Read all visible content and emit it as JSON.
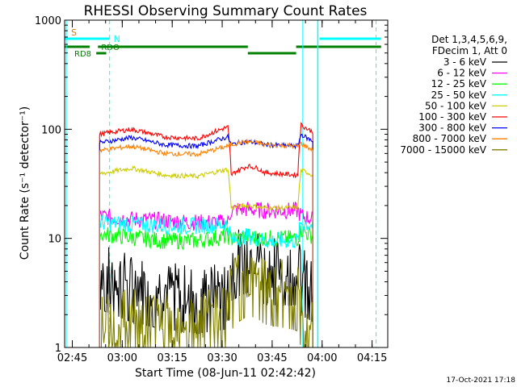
{
  "chart_data": {
    "type": "line",
    "title": "RHESSI Observing Summary Count Rates",
    "xlabel": "Start Time (08-Jun-11 02:42:42)",
    "ylabel": "Count Rate (s⁻¹ detector⁻¹)",
    "yscale": "log",
    "ylim": [
      1,
      1000
    ],
    "xlim_minutes": [
      0,
      97
    ],
    "x_tick_labels": [
      "02:45",
      "03:00",
      "03:15",
      "03:30",
      "03:45",
      "04:00",
      "04:15"
    ],
    "x_ticks_minutes": [
      2.3,
      17.3,
      32.3,
      47.3,
      62.3,
      77.3,
      92.3
    ],
    "y_tick_labels": [
      "1",
      "10",
      "100",
      "1000"
    ],
    "y_ticks": [
      1,
      10,
      100,
      1000
    ],
    "grid": false,
    "legend_header": [
      "Det 1,3,4,5,6,9,",
      "FDecim 1, Att 0"
    ],
    "legend_placement": "right",
    "timestamp": "17-Oct-2021 17:18",
    "flags": {
      "saa_label": "S",
      "night_label": "N",
      "rdo_label": "RDO",
      "rd8_label": "RD8",
      "saa_color": "#e07800",
      "night_color": "#00ffff",
      "flag_line_color": "#008000"
    },
    "vertical_markers_minutes": [
      0.5,
      13.5,
      71.5,
      93.5
    ],
    "eclipse_end_minutes": 74.5,
    "series_start_minutes": 10.5,
    "series_end_minutes": 74.5,
    "series": [
      {
        "name": "3 - 6 keV",
        "color": "#000000",
        "x": [
          10.5,
          20,
          30,
          40,
          49,
          50,
          52,
          55,
          58,
          60,
          70,
          71,
          73,
          74.5
        ],
        "y": [
          5.5,
          4.2,
          3.6,
          3.3,
          3.6,
          6.5,
          7.2,
          7.8,
          7.2,
          6.0,
          6.0,
          4.8,
          4.5,
          4.2
        ]
      },
      {
        "name": "6 - 12 keV",
        "color": "#ff00ff",
        "x": [
          10.5,
          20,
          30,
          40,
          49,
          50,
          52,
          55,
          58,
          60,
          70,
          71,
          73,
          74.5
        ],
        "y": [
          16,
          15,
          14.5,
          14,
          14,
          18,
          18.5,
          18.5,
          18.2,
          18,
          18,
          16,
          15.5,
          15
        ]
      },
      {
        "name": "12 - 25 keV",
        "color": "#00ff00",
        "x": [
          10.5,
          20,
          30,
          40,
          49,
          50,
          52,
          55,
          58,
          60,
          70,
          71,
          73,
          74.5
        ],
        "y": [
          11,
          10.2,
          9.5,
          9.5,
          10.5,
          10,
          10,
          10.5,
          10,
          10,
          10,
          12,
          11,
          10.5
        ]
      },
      {
        "name": "25 - 50 keV",
        "color": "#00ffff",
        "x": [
          10.5,
          20,
          30,
          40,
          49,
          50,
          52,
          55,
          58,
          60,
          70,
          71,
          73,
          74.5
        ],
        "y": [
          14,
          13.5,
          13,
          13,
          13.5,
          9.5,
          10,
          10.5,
          10,
          9.5,
          9.5,
          14,
          13.5,
          13
        ]
      },
      {
        "name": "50 - 100 keV",
        "color": "#cccc00",
        "x": [
          10.5,
          20,
          30,
          40,
          49,
          50,
          52,
          55,
          58,
          60,
          70,
          71,
          73,
          74.5
        ],
        "y": [
          39,
          44,
          38,
          37,
          43,
          19,
          19.5,
          20,
          19.5,
          19,
          19,
          42,
          40,
          38
        ]
      },
      {
        "name": "100 - 300 keV",
        "color": "#ff0000",
        "x": [
          10.5,
          20,
          30,
          40,
          49,
          50,
          52,
          55,
          58,
          60,
          70,
          71,
          73,
          74.5
        ],
        "y": [
          90,
          100,
          85,
          82,
          105,
          38,
          42,
          46,
          44,
          40,
          38,
          110,
          100,
          95
        ]
      },
      {
        "name": "300 - 800 keV",
        "color": "#0000ff",
        "x": [
          10.5,
          20,
          30,
          40,
          49,
          50,
          52,
          55,
          58,
          60,
          70,
          71,
          73,
          74.5
        ],
        "y": [
          75,
          84,
          72,
          70,
          85,
          72,
          75,
          77,
          75,
          72,
          70,
          90,
          82,
          78
        ]
      },
      {
        "name": "800 - 7000 keV",
        "color": "#ff8000",
        "x": [
          10.5,
          20,
          30,
          40,
          49,
          50,
          52,
          55,
          58,
          60,
          70,
          71,
          73,
          74.5
        ],
        "y": [
          64,
          70,
          60,
          59,
          70,
          72,
          75,
          77,
          75,
          72,
          70,
          74,
          68,
          65
        ]
      },
      {
        "name": "7000 - 15000 keV",
        "color": "#808000",
        "x": [
          10.5,
          20,
          30,
          40,
          49,
          50,
          52,
          55,
          58,
          60,
          70,
          71,
          73,
          74.5
        ],
        "y": [
          1.7,
          2.1,
          1.8,
          1.9,
          2.3,
          3.5,
          4.2,
          4.8,
          4.5,
          4.0,
          3.5,
          2.3,
          2.0,
          1.8
        ]
      }
    ]
  }
}
